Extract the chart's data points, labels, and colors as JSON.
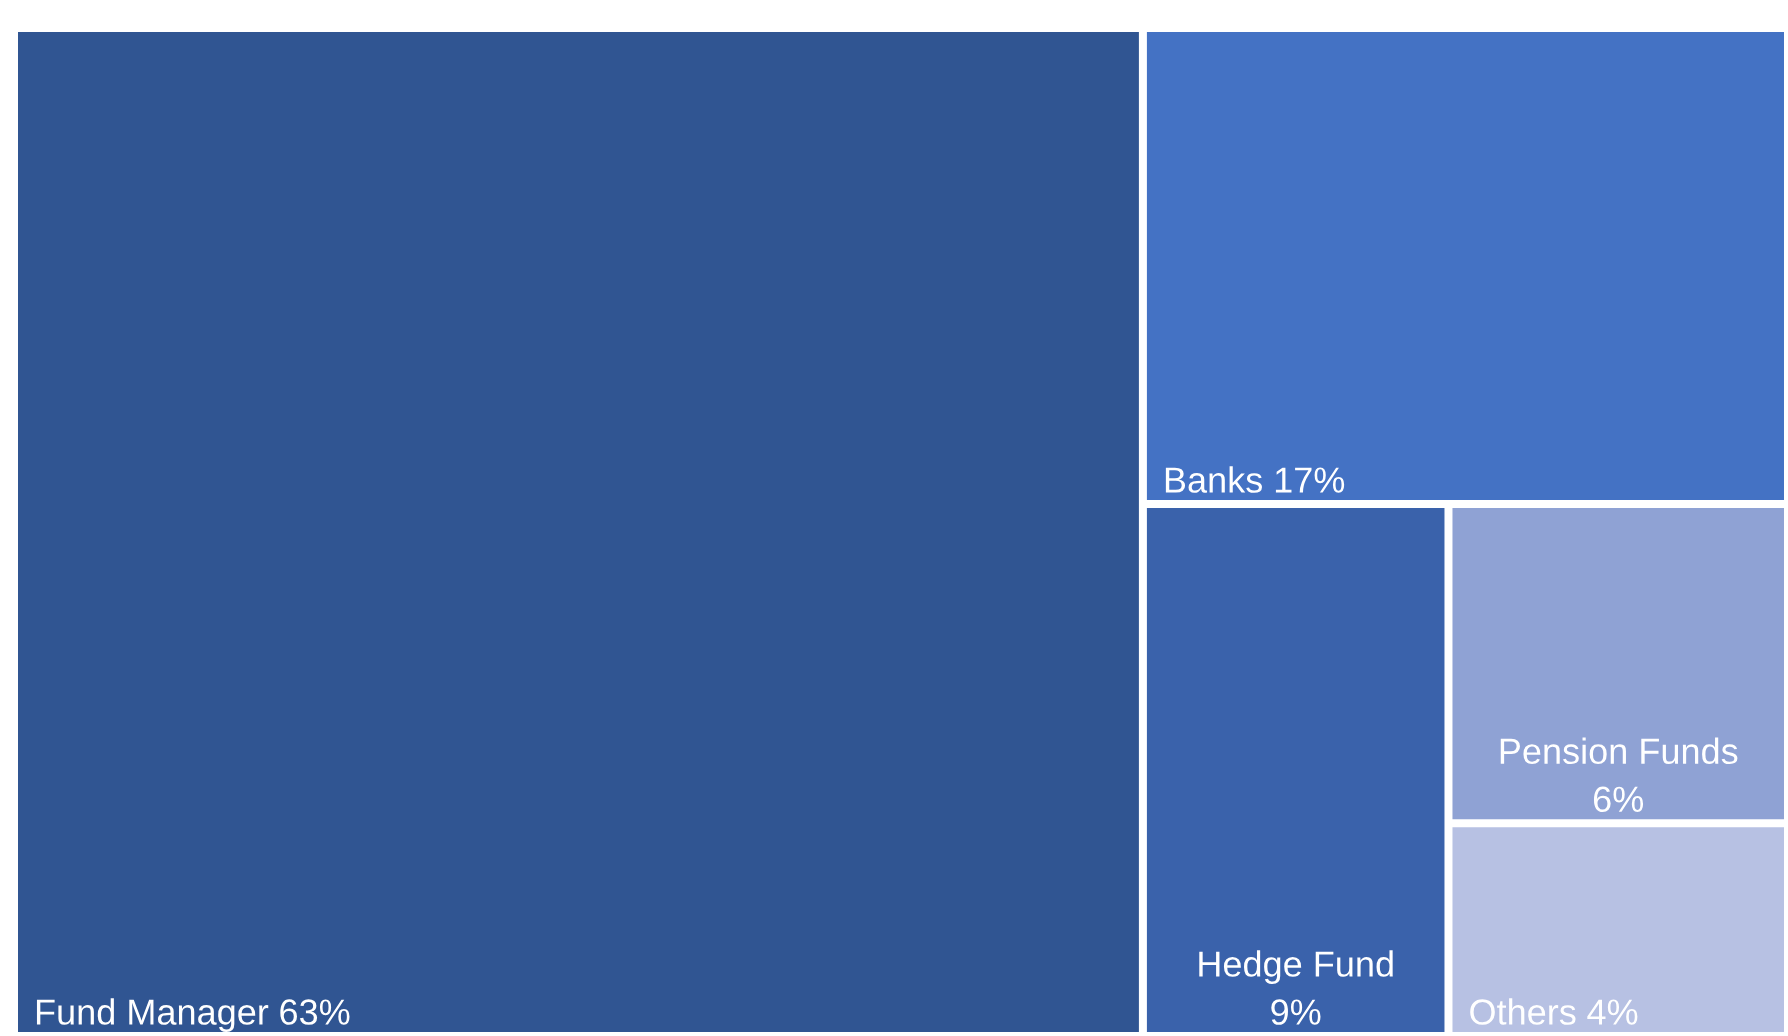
{
  "chart_data": {
    "type": "other",
    "categories": [
      "Fund Manager",
      "Banks",
      "Hedge Fund",
      "Pension Funds",
      "Others"
    ],
    "values": [
      63,
      17,
      9,
      6,
      4
    ],
    "value_labels": [
      "63%",
      "17%",
      "9%",
      "6%",
      "4%"
    ],
    "colors": [
      "#305592",
      "#4472c4",
      "#3a62ab",
      "#8fa2d4",
      "#b7c1e3"
    ]
  }
}
